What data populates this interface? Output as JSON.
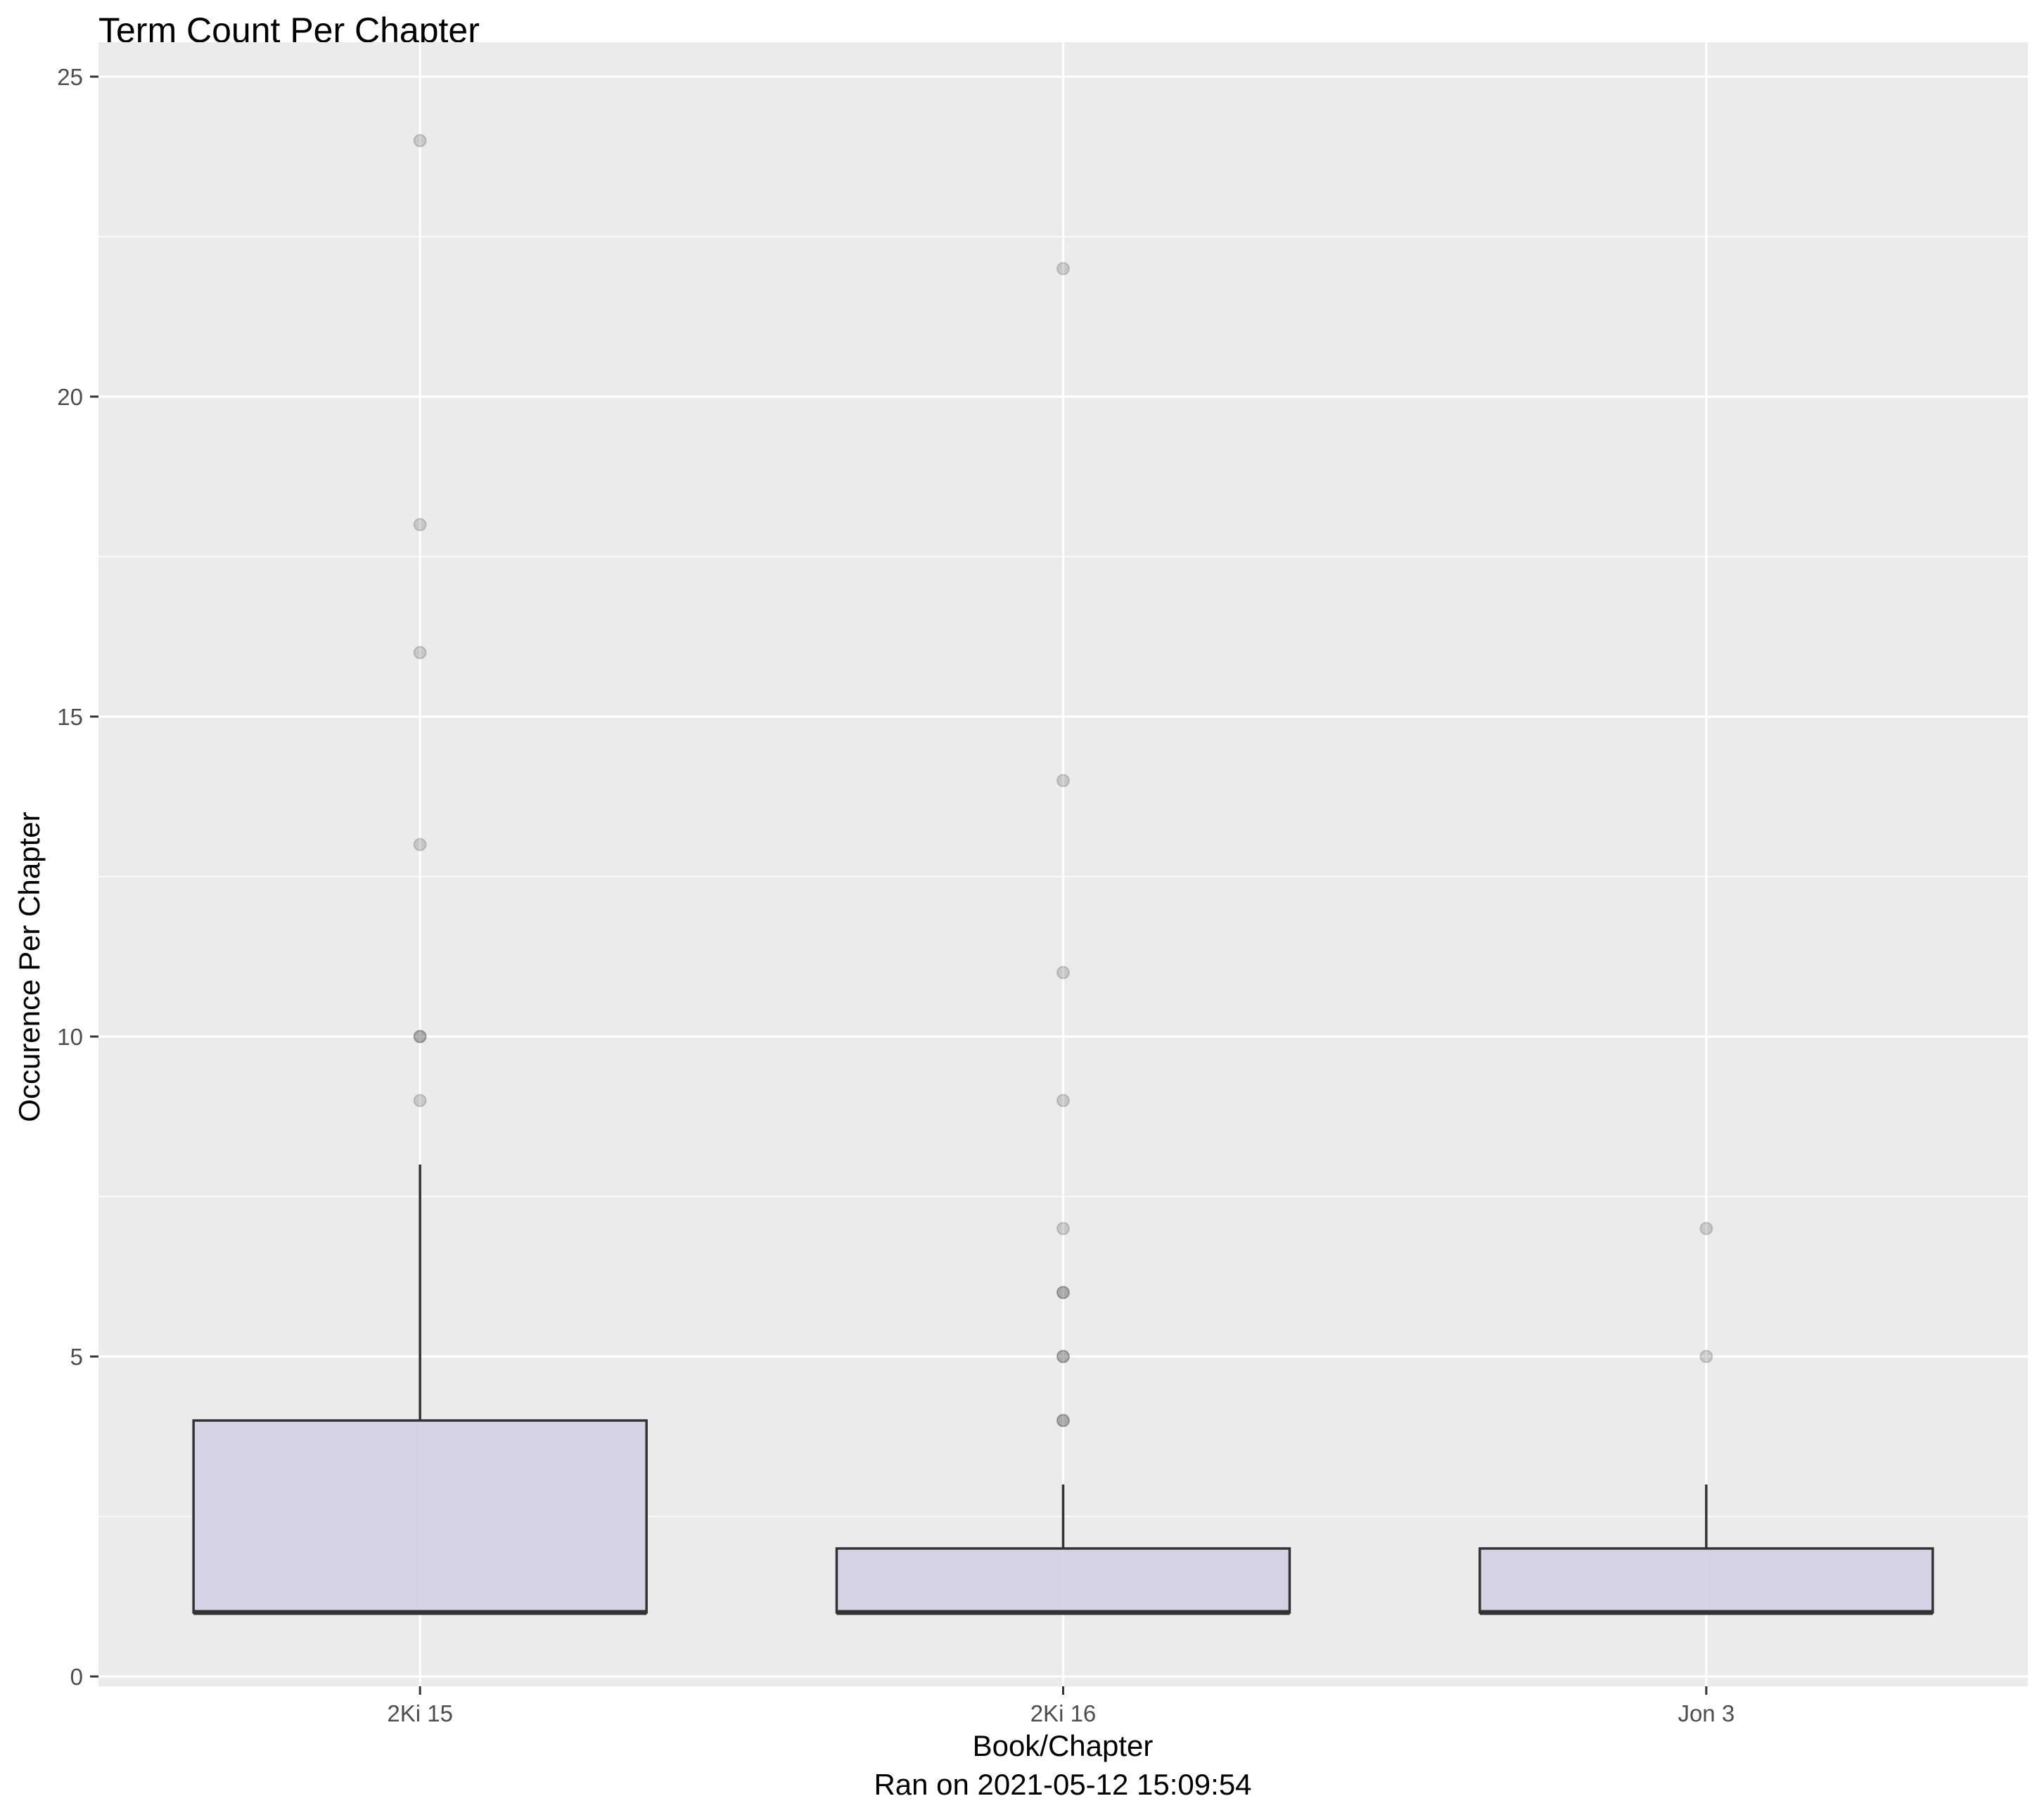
{
  "chart_data": {
    "type": "boxplot",
    "title": "Term Count Per Chapter",
    "xlabel": "Book/Chapter",
    "subtitle_below_xlabel": "Ran on 2021-05-12 15:09:54",
    "ylabel": "Occurence Per Chapter",
    "categories": [
      "2Ki 15",
      "2Ki 16",
      "Jon 3"
    ],
    "ylim": [
      0,
      25
    ],
    "yticks": [
      0,
      5,
      10,
      15,
      20,
      25
    ],
    "ytick_labels": [
      "0",
      "5",
      "10",
      "15",
      "20",
      "25"
    ],
    "grid": true,
    "boxes": [
      {
        "category": "2Ki 15",
        "lower_whisker": 1,
        "q1": 1,
        "median": 1,
        "q3": 4,
        "upper_whisker": 8
      },
      {
        "category": "2Ki 16",
        "lower_whisker": 1,
        "q1": 1,
        "median": 1,
        "q3": 2,
        "upper_whisker": 3
      },
      {
        "category": "Jon 3",
        "lower_whisker": 1,
        "q1": 1,
        "median": 1,
        "q3": 2,
        "upper_whisker": 3
      }
    ],
    "outliers": [
      {
        "category": "2Ki 15",
        "values": [
          24,
          18,
          16,
          13,
          10,
          10,
          9
        ]
      },
      {
        "category": "2Ki 16",
        "values": [
          22,
          14,
          11,
          9,
          7,
          6,
          6,
          5,
          5,
          4,
          4
        ]
      },
      {
        "category": "Jon 3",
        "values": [
          7,
          5
        ]
      }
    ],
    "colors": {
      "panel_background": "#ebebeb",
      "grid_line": "#ffffff",
      "box_fill": "#d3cfe6",
      "box_stroke": "#333333",
      "outlier": "#333333"
    }
  }
}
